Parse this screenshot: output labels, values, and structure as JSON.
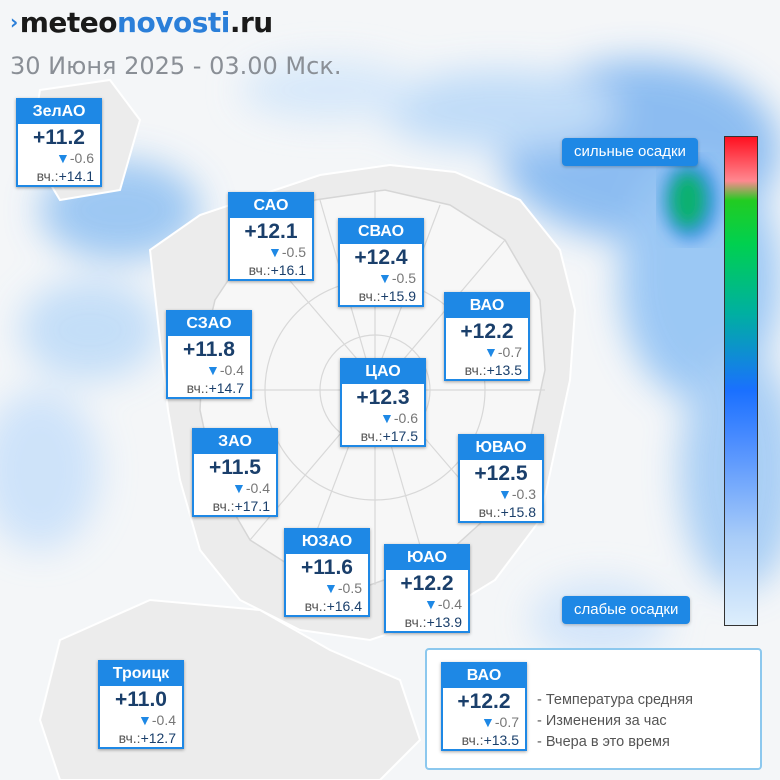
{
  "header": {
    "brand_mark": "›",
    "brand_part1": "meteo",
    "brand_part2": "novosti",
    "brand_part3": ".ru",
    "subtitle": "30 Июня 2025 - 03.00 Мск."
  },
  "districts": {
    "zelao": {
      "name": "ЗелАО",
      "temp": "+11.2",
      "delta": "-0.6",
      "yest_label": "вч.:",
      "yest": "+14.1"
    },
    "sao": {
      "name": "САО",
      "temp": "+12.1",
      "delta": "-0.5",
      "yest_label": "вч.:",
      "yest": "+16.1"
    },
    "svao": {
      "name": "СВАО",
      "temp": "+12.4",
      "delta": "-0.5",
      "yest_label": "вч.:",
      "yest": "+15.9"
    },
    "szao": {
      "name": "СЗАО",
      "temp": "+11.8",
      "delta": "-0.4",
      "yest_label": "вч.:",
      "yest": "+14.7"
    },
    "vao": {
      "name": "ВАО",
      "temp": "+12.2",
      "delta": "-0.7",
      "yest_label": "вч.:",
      "yest": "+13.5"
    },
    "tsao": {
      "name": "ЦАО",
      "temp": "+12.3",
      "delta": "-0.6",
      "yest_label": "вч.:",
      "yest": "+17.5"
    },
    "zao": {
      "name": "ЗАО",
      "temp": "+11.5",
      "delta": "-0.4",
      "yest_label": "вч.:",
      "yest": "+17.1"
    },
    "yuvao": {
      "name": "ЮВАО",
      "temp": "+12.5",
      "delta": "-0.3",
      "yest_label": "вч.:",
      "yest": "+15.8"
    },
    "yuzao": {
      "name": "ЮЗАО",
      "temp": "+11.6",
      "delta": "-0.5",
      "yest_label": "вч.:",
      "yest": "+16.4"
    },
    "yuao": {
      "name": "ЮАО",
      "temp": "+12.2",
      "delta": "-0.4",
      "yest_label": "вч.:",
      "yest": "+13.9"
    },
    "troitsk": {
      "name": "Троицк",
      "temp": "+11.0",
      "delta": "-0.4",
      "yest_label": "вч.:",
      "yest": "+12.7"
    }
  },
  "scale": {
    "top_label": "сильные осадки",
    "bottom_label": "слабые осадки"
  },
  "legend": {
    "sample": {
      "name": "ВАО",
      "temp": "+12.2",
      "delta": "-0.7",
      "yest_label": "вч.:",
      "yest": "+13.5"
    },
    "line1": "- Температура средняя",
    "line2": "- Изменения за час",
    "line3": "- Вчера в это время"
  },
  "colors": {
    "accent": "#1e88e5",
    "temp_text": "#1a3f6b",
    "precip_light": "#a8ccf8",
    "precip_heavy": "#00b050"
  }
}
